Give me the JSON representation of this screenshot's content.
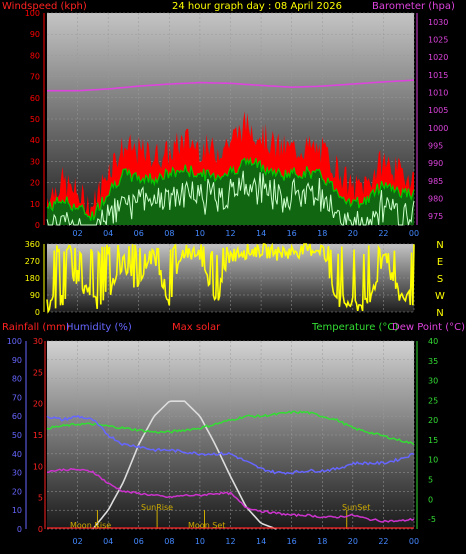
{
  "header": {
    "left": "Windspeed (kph)",
    "center": "24 hour graph day : 08 April 2026",
    "right": "Barometer (hpa)"
  },
  "legend2": {
    "rain": "Rainfall (mm)",
    "humidity": "Humidity (%)",
    "solar": "Max solar",
    "temp": "Temperature (°C)",
    "dew": "Dew Point (°C)"
  },
  "colors": {
    "gust": "#ff0000",
    "avg_wind": "#00cc00",
    "wind_light": "#ccffcc",
    "barometer": "#dd44dd",
    "direction": "#ffff00",
    "temperature": "#33dd33",
    "humidity": "#6666ff",
    "dew_point": "#cc33cc",
    "solar": "#dddddd",
    "rain": "#ff2222",
    "sun_marker": "#ccaa00"
  },
  "chart_data": [
    {
      "type": "line",
      "title": "24 hour graph day : 08 April 2026",
      "ylabel": "Windspeed (kph)",
      "y2label": "Barometer (hpa)",
      "x_ticks": [
        "02",
        "04",
        "06",
        "08",
        "10",
        "12",
        "14",
        "16",
        "18",
        "20",
        "22",
        "00"
      ],
      "y_ticks": [
        0,
        10,
        20,
        30,
        40,
        50,
        60,
        70,
        80,
        90,
        100
      ],
      "y2_ticks": [
        975,
        980,
        985,
        990,
        995,
        1000,
        1005,
        1010,
        1015,
        1020,
        1025,
        1030
      ],
      "ylim": [
        0,
        100
      ],
      "y2lim": [
        972.5,
        1032.5
      ],
      "series": [
        {
          "name": "gust",
          "hours": [
            0,
            1,
            2,
            3,
            4,
            5,
            6,
            7,
            8,
            9,
            10,
            11,
            12,
            13,
            14,
            15,
            16,
            17,
            18,
            19,
            20,
            21,
            22,
            23,
            24
          ],
          "values": [
            10,
            18,
            12,
            6,
            24,
            34,
            32,
            30,
            31,
            38,
            34,
            32,
            37,
            45,
            40,
            34,
            33,
            34,
            32,
            24,
            14,
            18,
            28,
            22,
            20
          ]
        },
        {
          "name": "average",
          "hours": [
            0,
            1,
            2,
            3,
            4,
            5,
            6,
            7,
            8,
            9,
            10,
            11,
            12,
            13,
            14,
            15,
            16,
            17,
            18,
            19,
            20,
            21,
            22,
            23,
            24
          ],
          "values": [
            8,
            12,
            8,
            4,
            16,
            24,
            22,
            22,
            24,
            26,
            24,
            23,
            25,
            30,
            28,
            24,
            24,
            25,
            23,
            16,
            10,
            12,
            20,
            16,
            14
          ]
        },
        {
          "name": "barometer",
          "hours": [
            0,
            2,
            4,
            6,
            8,
            10,
            12,
            14,
            16,
            18,
            20,
            22,
            24
          ],
          "values": [
            1010.5,
            1010.5,
            1011,
            1011.8,
            1012.4,
            1012.8,
            1012.6,
            1012,
            1011.5,
            1011.8,
            1012.4,
            1013,
            1013.5
          ]
        }
      ]
    },
    {
      "type": "scatter",
      "ylabel": "Wind direction",
      "y_ticks": [
        0,
        90,
        180,
        270,
        360
      ],
      "compass": [
        "N",
        "W",
        "S",
        "E",
        "N"
      ],
      "ylim": [
        0,
        360
      ],
      "series": [
        {
          "name": "direction",
          "hours": [
            0,
            1,
            2,
            3,
            4,
            5,
            6,
            7,
            8,
            9,
            10,
            11,
            12,
            13,
            14,
            15,
            16,
            17,
            18,
            19,
            20,
            21,
            22,
            23,
            24
          ],
          "values": [
            40,
            60,
            200,
            40,
            90,
            270,
            120,
            300,
            60,
            330,
            280,
            40,
            300,
            320,
            330,
            310,
            320,
            330,
            340,
            60,
            40,
            30,
            300,
            90,
            70
          ]
        }
      ]
    },
    {
      "type": "line",
      "y_left_ticks": [
        0,
        10,
        20,
        30,
        40,
        50,
        60,
        70,
        80,
        90,
        100
      ],
      "rain_ticks": [
        0,
        5,
        10,
        15,
        20,
        25,
        30
      ],
      "temp_ticks": [
        -5,
        0,
        5,
        10,
        15,
        20,
        25,
        30,
        35,
        40
      ],
      "markers": [
        "Moon Rise",
        "SunRise",
        "Moon Set",
        "SunSet"
      ],
      "series": [
        {
          "name": "Temperature",
          "hours": [
            0,
            1,
            2,
            3,
            4,
            5,
            6,
            7,
            8,
            9,
            10,
            11,
            12,
            13,
            14,
            15,
            16,
            17,
            18,
            19,
            20,
            21,
            22,
            23,
            24
          ],
          "values": [
            18,
            18.5,
            19,
            19,
            18.5,
            18,
            17.5,
            17,
            17,
            17.5,
            18,
            19,
            20,
            21,
            21,
            21.5,
            22,
            22,
            21,
            20,
            18,
            17,
            16,
            15,
            14
          ]
        },
        {
          "name": "Humidity",
          "hours": [
            0,
            1,
            2,
            3,
            4,
            5,
            6,
            7,
            8,
            9,
            10,
            11,
            12,
            13,
            14,
            15,
            16,
            17,
            18,
            19,
            20,
            21,
            22,
            23,
            24
          ],
          "values": [
            60,
            58,
            60,
            58,
            50,
            45,
            44,
            42,
            42,
            41,
            40,
            40,
            40,
            36,
            32,
            30,
            30,
            31,
            31,
            32,
            35,
            35,
            35,
            37,
            40
          ]
        },
        {
          "name": "Dew Point",
          "hours": [
            0,
            1,
            2,
            3,
            4,
            5,
            6,
            7,
            8,
            9,
            10,
            11,
            12,
            13,
            14,
            15,
            16,
            17,
            18,
            19,
            20,
            21,
            22,
            23,
            24
          ],
          "values": [
            7,
            7.5,
            7.5,
            7,
            4,
            2,
            1.5,
            1,
            0.5,
            1,
            1,
            1.5,
            1.5,
            -2,
            -3,
            -3.5,
            -4,
            -4,
            -4.5,
            -4.5,
            -4,
            -5,
            -5.5,
            -5.5,
            -5
          ]
        },
        {
          "name": "Max solar",
          "hours": [
            3,
            4,
            5,
            6,
            7,
            8,
            9,
            10,
            11,
            12,
            13,
            14,
            15
          ],
          "values": [
            0,
            10,
            25,
            45,
            60,
            68,
            68,
            60,
            45,
            28,
            12,
            3,
            0
          ]
        }
      ]
    }
  ]
}
